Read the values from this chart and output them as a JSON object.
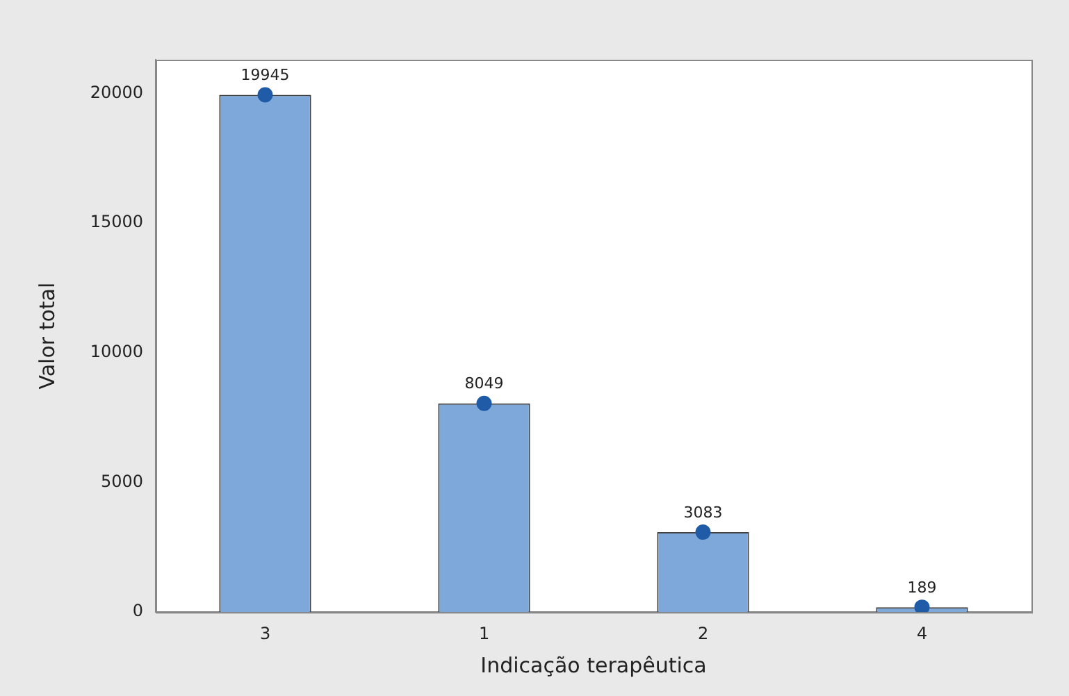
{
  "chart_data": {
    "type": "bar",
    "xlabel": "Indicação terapêutica",
    "ylabel": "Valor total",
    "categories": [
      "3",
      "1",
      "2",
      "4"
    ],
    "series": [
      {
        "color": "#7fa8da",
        "values": [
          19945,
          8049,
          3083,
          189
        ]
      },
      {
        "type": "scatter",
        "color": "#1f5ba6",
        "x": [
          "3",
          "1",
          "2",
          "4"
        ],
        "values": [
          19945,
          8049,
          3083,
          189
        ],
        "value_labels": [
          "19945",
          "8049",
          "3083",
          "189"
        ],
        "marker": "circle"
      }
    ],
    "ylim": [
      0,
      21300
    ],
    "yticks": [
      0,
      5000,
      10000,
      15000,
      20000
    ],
    "grid": false,
    "legend": false
  }
}
